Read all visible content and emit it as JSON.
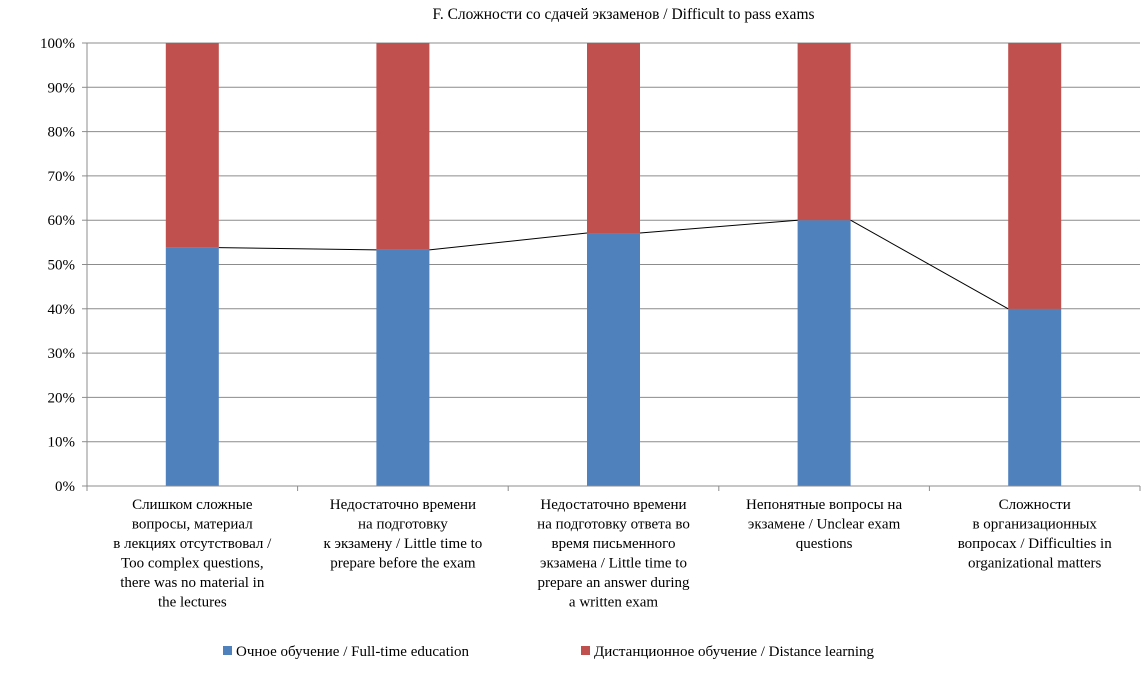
{
  "chart_data": {
    "type": "bar",
    "stacked": true,
    "percent_stacked": true,
    "title": "F. Сложности со сдачей экзаменов / Difficult to pass exams",
    "ylim": [
      0,
      100
    ],
    "yticks": [
      "0%",
      "10%",
      "20%",
      "30%",
      "40%",
      "50%",
      "60%",
      "70%",
      "80%",
      "90%",
      "100%"
    ],
    "grid": true,
    "legend_position": "bottom",
    "categories": [
      [
        "Слишком сложные",
        "вопросы, материал",
        "в лекциях отсутствовал /",
        "Too complex questions,",
        "there was no material in",
        "the lectures"
      ],
      [
        "Недостаточно времени",
        "на подготовку",
        "к экзамену / Little time to",
        "prepare before the exam"
      ],
      [
        "Недостаточно времени",
        "на подготовку ответа во",
        "время письменного",
        "экзамена / Little time to",
        "prepare an answer during",
        "a written exam"
      ],
      [
        "Непонятные вопросы на",
        "экзамене / Unclear exam",
        "questions"
      ],
      [
        "Сложности",
        "в организационных",
        "вопросах / Difficulties in",
        "organizational matters"
      ]
    ],
    "series": [
      {
        "name": "Очное обучение / Full-time education",
        "color": "#4f81bd",
        "values": [
          53.8,
          53.3,
          57.1,
          60.0,
          40.0
        ]
      },
      {
        "name": "Дистанционное обучение / Distance learning",
        "color": "#c0504d",
        "values": [
          46.2,
          46.7,
          42.9,
          40.0,
          60.0
        ]
      }
    ],
    "series_lines": true
  }
}
